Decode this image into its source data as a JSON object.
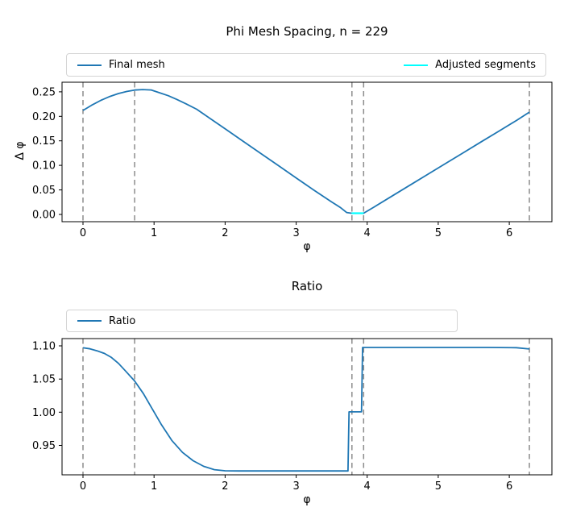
{
  "figure": {
    "background": "#ffffff",
    "top_title": "Phi Mesh Spacing, n = 229",
    "bottom_title": "Ratio"
  },
  "colors": {
    "final_mesh_blue": "#1f77b4",
    "adjusted_cyan": "#00ffff",
    "boundary_gray": "#8c8c8c",
    "axis_black": "#000000",
    "legend_border": "#d4d4d4"
  },
  "chart_data": [
    {
      "id": "phi-mesh-spacing",
      "type": "line",
      "title": "Phi Mesh Spacing, n = 229",
      "n": 229,
      "xlabel": "φ",
      "ylabel": "Δ φ",
      "xlim": [
        -0.295,
        6.6
      ],
      "ylim": [
        -0.0148,
        0.2695
      ],
      "xticks": [
        0,
        1,
        2,
        3,
        4,
        5,
        6
      ],
      "xtick_labels": [
        "0",
        "1",
        "2",
        "3",
        "4",
        "5",
        "6"
      ],
      "yticks": [
        0.0,
        0.05,
        0.1,
        0.15,
        0.2,
        0.25
      ],
      "ytick_labels": [
        "0.00",
        "0.05",
        "0.10",
        "0.15",
        "0.20",
        "0.25"
      ],
      "grid": false,
      "legend_position": "top-full-width",
      "boundary_lines_x": [
        0,
        0.727,
        3.785,
        3.95,
        6.283
      ],
      "boundary_color": "#8c8c8c",
      "series": [
        {
          "name": "Final mesh",
          "color": "#1f77b4",
          "width": 1.8,
          "points": [
            [
              0,
              0.212
            ],
            [
              0.12,
              0.2225
            ],
            [
              0.25,
              0.2325
            ],
            [
              0.38,
              0.2405
            ],
            [
              0.5,
              0.2465
            ],
            [
              0.62,
              0.2508
            ],
            [
              0.727,
              0.2535
            ],
            [
              0.84,
              0.2545
            ],
            [
              0.96,
              0.2538
            ],
            [
              1.08,
              0.248
            ],
            [
              1.2,
              0.242
            ],
            [
              1.32,
              0.2345
            ],
            [
              1.45,
              0.2255
            ],
            [
              1.6,
              0.2145
            ],
            [
              1.8,
              0.1945
            ],
            [
              2,
              0.1745
            ],
            [
              2.25,
              0.1495
            ],
            [
              2.5,
              0.1245
            ],
            [
              2.75,
              0.0995
            ],
            [
              3,
              0.0745
            ],
            [
              3.25,
              0.0495
            ],
            [
              3.5,
              0.0255
            ],
            [
              3.62,
              0.0145
            ],
            [
              3.71,
              0.004
            ],
            [
              3.78,
              0.0025
            ],
            [
              3.95,
              0.0025
            ],
            [
              4.1,
              0.0155
            ],
            [
              4.35,
              0.0375
            ],
            [
              4.6,
              0.0595
            ],
            [
              4.85,
              0.0815
            ],
            [
              5.1,
              0.1035
            ],
            [
              5.35,
              0.1255
            ],
            [
              5.6,
              0.1475
            ],
            [
              5.85,
              0.1695
            ],
            [
              6.1,
              0.1915
            ],
            [
              6.283,
              0.2085
            ]
          ]
        },
        {
          "name": "Adjusted segments",
          "color": "#00ffff",
          "width": 2.2,
          "points": [
            [
              3.78,
              0.0025
            ],
            [
              3.95,
              0.0025
            ]
          ]
        }
      ]
    },
    {
      "id": "ratio",
      "type": "line",
      "title": "Ratio",
      "xlabel": "φ",
      "ylabel": "",
      "xlim": [
        -0.295,
        6.6
      ],
      "ylim": [
        0.9057,
        1.1109
      ],
      "xticks": [
        0,
        1,
        2,
        3,
        4,
        5,
        6
      ],
      "xtick_labels": [
        "0",
        "1",
        "2",
        "3",
        "4",
        "5",
        "6"
      ],
      "yticks": [
        0.95,
        1.0,
        1.05,
        1.1
      ],
      "ytick_labels": [
        "0.95",
        "1.00",
        "1.05",
        "1.10"
      ],
      "grid": false,
      "legend_position": "top-left-wide",
      "boundary_lines_x": [
        0,
        0.727,
        3.785,
        3.95,
        6.283
      ],
      "boundary_color": "#8c8c8c",
      "series": [
        {
          "name": "Ratio",
          "color": "#1f77b4",
          "width": 1.8,
          "points": [
            [
              0,
              1.097
            ],
            [
              0.1,
              1.0955
            ],
            [
              0.2,
              1.0925
            ],
            [
              0.3,
              1.0885
            ],
            [
              0.4,
              1.0825
            ],
            [
              0.5,
              1.0735
            ],
            [
              0.6,
              1.062
            ],
            [
              0.727,
              1.047
            ],
            [
              0.85,
              1.028
            ],
            [
              0.97,
              1.006
            ],
            [
              1.1,
              0.982
            ],
            [
              1.25,
              0.9575
            ],
            [
              1.4,
              0.9395
            ],
            [
              1.55,
              0.927
            ],
            [
              1.7,
              0.9185
            ],
            [
              1.85,
              0.9135
            ],
            [
              2,
              0.9118
            ],
            [
              2.2,
              0.9115
            ],
            [
              2.6,
              0.9115
            ],
            [
              3,
              0.9115
            ],
            [
              3.4,
              0.9115
            ],
            [
              3.73,
              0.9115
            ],
            [
              3.745,
              1.0005
            ],
            [
              3.92,
              1.0005
            ],
            [
              3.935,
              1.0975
            ],
            [
              4.2,
              1.0975
            ],
            [
              4.7,
              1.0975
            ],
            [
              5.2,
              1.0975
            ],
            [
              5.7,
              1.0975
            ],
            [
              6.1,
              1.0972
            ],
            [
              6.283,
              1.0952
            ]
          ]
        }
      ]
    }
  ]
}
